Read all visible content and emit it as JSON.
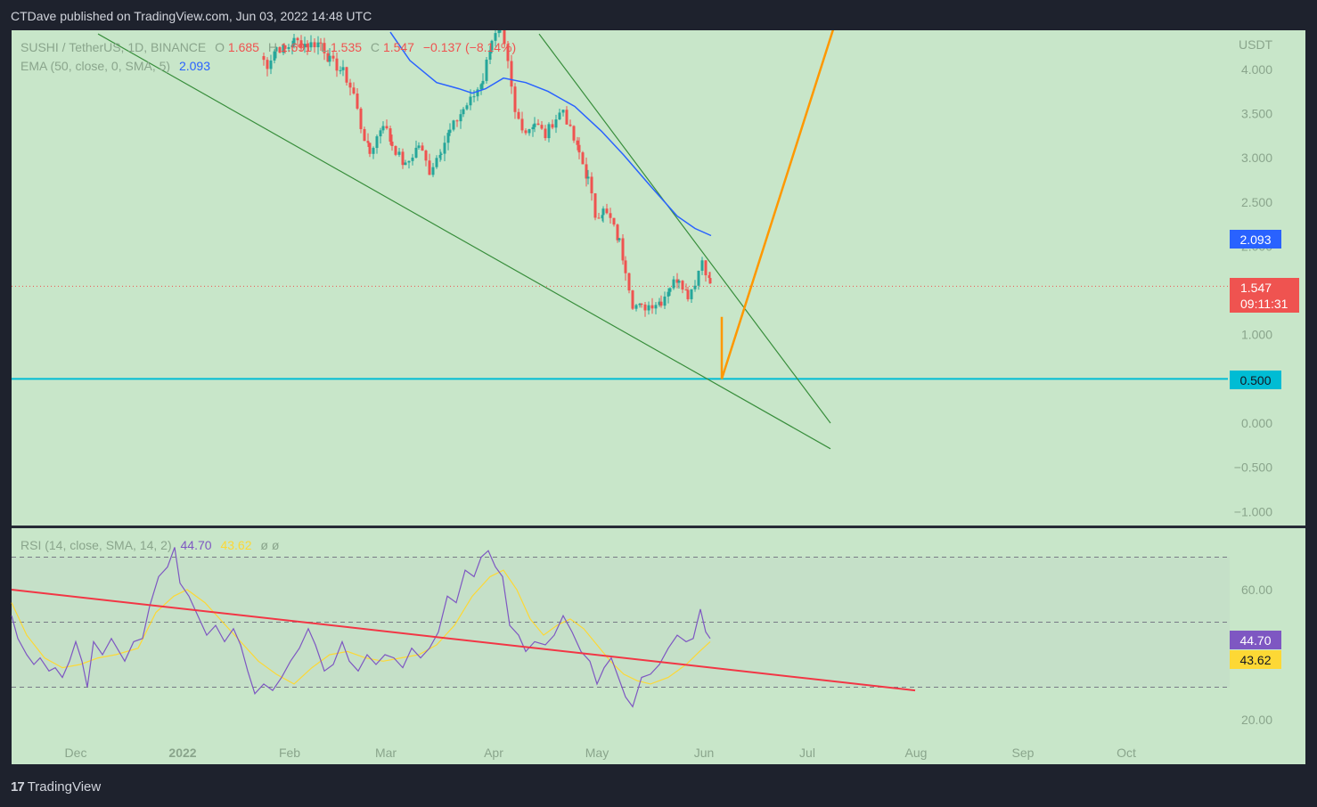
{
  "header": {
    "published_text": "CTDave published on TradingView.com, Jun 03, 2022 14:48 UTC"
  },
  "footer": {
    "brand": "TradingView",
    "logo_glyph": "17"
  },
  "colors": {
    "background": "#c8e6c9",
    "frame": "#1e222d",
    "up": "#26a69a",
    "down": "#ef5350",
    "ema": "#2962ff",
    "rsi": "#7e57c2",
    "rsi_ma": "#fdd835",
    "trendline": "#388e3c",
    "projection": "#ff9800",
    "support": "#00bcd4",
    "rsi_trend": "#f23645"
  },
  "chart_data": [
    {
      "type": "candlestick",
      "symbol_label": "SUSHI / TetherUS, 1D, BINANCE",
      "ohlc": {
        "o_label": "O",
        "open": "1.685",
        "h_label": "H",
        "high": "1.691",
        "l_label": "L",
        "low": "1.535",
        "c_label": "C",
        "close": "1.547",
        "change": "−0.137 (−8.14%)"
      },
      "ema_legend": {
        "label": "EMA (50, close, 0, SMA, 5)",
        "value": "2.093"
      },
      "unit": "USDT",
      "y_ticks": [
        "4.000",
        "3.500",
        "3.000",
        "2.500",
        "2.000",
        "1.000",
        "0.000",
        "−0.500",
        "−1.000"
      ],
      "ylim": [
        -1.0,
        4.4
      ],
      "x_ticks": [
        "Dec",
        "2022",
        "Feb",
        "Mar",
        "Apr",
        "May",
        "Jun",
        "Jul",
        "Aug",
        "Sep",
        "Oct"
      ],
      "price_labels": {
        "ema": "2.093",
        "last": "1.547",
        "countdown": "09:11:31",
        "support": "0.500"
      },
      "last_price": 1.547,
      "support_level": 0.5,
      "ema_value": 2.093,
      "ema_points": [
        [
          438,
          4.42
        ],
        [
          460,
          4.1
        ],
        [
          490,
          3.85
        ],
        [
          515,
          3.78
        ],
        [
          530,
          3.73
        ],
        [
          545,
          3.78
        ],
        [
          565,
          3.9
        ],
        [
          590,
          3.85
        ],
        [
          615,
          3.75
        ],
        [
          645,
          3.58
        ],
        [
          675,
          3.3
        ],
        [
          700,
          3.03
        ],
        [
          730,
          2.68
        ],
        [
          760,
          2.34
        ],
        [
          780,
          2.2
        ],
        [
          798,
          2.12
        ]
      ],
      "candles_anchors": [
        [
          292,
          4.15
        ],
        [
          300,
          4.05
        ],
        [
          310,
          4.25
        ],
        [
          320,
          4.22
        ],
        [
          330,
          4.32
        ],
        [
          345,
          4.28
        ],
        [
          360,
          4.3
        ],
        [
          370,
          4.1
        ],
        [
          385,
          3.97
        ],
        [
          397,
          3.72
        ],
        [
          405,
          3.35
        ],
        [
          415,
          3.05
        ],
        [
          430,
          3.4
        ],
        [
          440,
          3.15
        ],
        [
          455,
          2.9
        ],
        [
          470,
          3.15
        ],
        [
          482,
          2.85
        ],
        [
          495,
          3.1
        ],
        [
          505,
          3.3
        ],
        [
          520,
          3.55
        ],
        [
          532,
          3.7
        ],
        [
          542,
          3.9
        ],
        [
          552,
          4.35
        ],
        [
          562,
          4.42
        ],
        [
          570,
          4.05
        ],
        [
          578,
          3.5
        ],
        [
          590,
          3.3
        ],
        [
          600,
          3.4
        ],
        [
          612,
          3.25
        ],
        [
          620,
          3.4
        ],
        [
          632,
          3.55
        ],
        [
          640,
          3.3
        ],
        [
          650,
          3.05
        ],
        [
          660,
          2.75
        ],
        [
          668,
          2.35
        ],
        [
          677,
          2.4
        ],
        [
          685,
          2.3
        ],
        [
          695,
          2.05
        ],
        [
          702,
          1.75
        ],
        [
          710,
          1.35
        ],
        [
          720,
          1.3
        ],
        [
          732,
          1.35
        ],
        [
          742,
          1.38
        ],
        [
          752,
          1.55
        ],
        [
          762,
          1.65
        ],
        [
          772,
          1.45
        ],
        [
          780,
          1.6
        ],
        [
          788,
          1.85
        ],
        [
          797,
          1.58
        ]
      ],
      "trendlines_axis_units": [
        {
          "from": [
            110,
            4.4
          ],
          "to": [
            932,
            -0.29
          ]
        },
        {
          "from": [
            605,
            4.4
          ],
          "to": [
            932,
            0.0
          ]
        }
      ],
      "projection_axis_units": [
        [
          810,
          1.2
        ],
        [
          810,
          0.5
        ],
        [
          935,
          4.45
        ]
      ]
    },
    {
      "type": "line",
      "indicator_label": "RSI (14, close, SMA, 14, 2)",
      "rsi_value": "44.70",
      "rsi_ma_value": "43.62",
      "extra_legend": "ø  ø",
      "y_ticks": [
        "60.00",
        "20.00"
      ],
      "ylim": [
        16,
        76
      ],
      "band": [
        30,
        70
      ],
      "midline": 50,
      "series": [
        {
          "points": [
            [
              13,
              52
            ],
            [
              20,
              45
            ],
            [
              30,
              40
            ],
            [
              38,
              37
            ],
            [
              45,
              39
            ],
            [
              55,
              35
            ],
            [
              62,
              36
            ],
            [
              70,
              33
            ],
            [
              78,
              38
            ],
            [
              85,
              44
            ],
            [
              92,
              38
            ],
            [
              98,
              30
            ],
            [
              105,
              44
            ],
            [
              115,
              40
            ],
            [
              125,
              45
            ],
            [
              140,
              38
            ],
            [
              150,
              44
            ],
            [
              160,
              45
            ],
            [
              168,
              55
            ],
            [
              178,
              64
            ],
            [
              188,
              67
            ],
            [
              196,
              73
            ],
            [
              202,
              62
            ],
            [
              212,
              58
            ],
            [
              222,
              52
            ],
            [
              232,
              46
            ],
            [
              242,
              49
            ],
            [
              252,
              44
            ],
            [
              262,
              48
            ],
            [
              270,
              43
            ],
            [
              278,
              35
            ],
            [
              286,
              28
            ],
            [
              296,
              31
            ],
            [
              306,
              29
            ],
            [
              316,
              33
            ],
            [
              326,
              38
            ],
            [
              336,
              42
            ],
            [
              346,
              48
            ],
            [
              354,
              43
            ],
            [
              364,
              35
            ],
            [
              374,
              37
            ],
            [
              384,
              44
            ],
            [
              392,
              38
            ],
            [
              402,
              35
            ],
            [
              412,
              40
            ],
            [
              422,
              37
            ],
            [
              432,
              40
            ],
            [
              442,
              39
            ],
            [
              452,
              36
            ],
            [
              462,
              42
            ],
            [
              472,
              39
            ],
            [
              482,
              42
            ],
            [
              492,
              47
            ],
            [
              502,
              58
            ],
            [
              512,
              56
            ],
            [
              522,
              66
            ],
            [
              532,
              64
            ],
            [
              540,
              70
            ],
            [
              548,
              72
            ],
            [
              556,
              67
            ],
            [
              564,
              64
            ],
            [
              572,
              49
            ],
            [
              582,
              46
            ],
            [
              590,
              41
            ],
            [
              600,
              44
            ],
            [
              612,
              43
            ],
            [
              622,
              46
            ],
            [
              632,
              52
            ],
            [
              642,
              47
            ],
            [
              652,
              41
            ],
            [
              662,
              38
            ],
            [
              670,
              31
            ],
            [
              678,
              36
            ],
            [
              686,
              39
            ],
            [
              694,
              33
            ],
            [
              702,
              27
            ],
            [
              710,
              24
            ],
            [
              720,
              33
            ],
            [
              730,
              34
            ],
            [
              740,
              37
            ],
            [
              750,
              42
            ],
            [
              760,
              46
            ],
            [
              770,
              44
            ],
            [
              778,
              45
            ],
            [
              786,
              54
            ],
            [
              792,
              47
            ],
            [
              797,
              45
            ]
          ]
        },
        {
          "points": [
            [
              13,
              56
            ],
            [
              30,
              46
            ],
            [
              50,
              39
            ],
            [
              70,
              36
            ],
            [
              90,
              37
            ],
            [
              110,
              39
            ],
            [
              130,
              40
            ],
            [
              155,
              42
            ],
            [
              175,
              53
            ],
            [
              195,
              58
            ],
            [
              210,
              60
            ],
            [
              230,
              56
            ],
            [
              250,
              50
            ],
            [
              270,
              44
            ],
            [
              290,
              38
            ],
            [
              310,
              34
            ],
            [
              330,
              31
            ],
            [
              350,
              36
            ],
            [
              370,
              40
            ],
            [
              390,
              41
            ],
            [
              410,
              39
            ],
            [
              430,
              38
            ],
            [
              450,
              39
            ],
            [
              470,
              40
            ],
            [
              490,
              43
            ],
            [
              510,
              49
            ],
            [
              530,
              58
            ],
            [
              550,
              64
            ],
            [
              565,
              66
            ],
            [
              580,
              60
            ],
            [
              595,
              51
            ],
            [
              610,
              46
            ],
            [
              625,
              49
            ],
            [
              640,
              51
            ],
            [
              655,
              48
            ],
            [
              670,
              43
            ],
            [
              685,
              38
            ],
            [
              700,
              34
            ],
            [
              715,
              32
            ],
            [
              730,
              31
            ],
            [
              750,
              33
            ],
            [
              770,
              37
            ],
            [
              785,
              41
            ],
            [
              797,
              44
            ]
          ]
        },
        {
          "points": [
            [
              13,
              60
            ],
            [
              1027,
              29
            ]
          ]
        }
      ]
    }
  ]
}
